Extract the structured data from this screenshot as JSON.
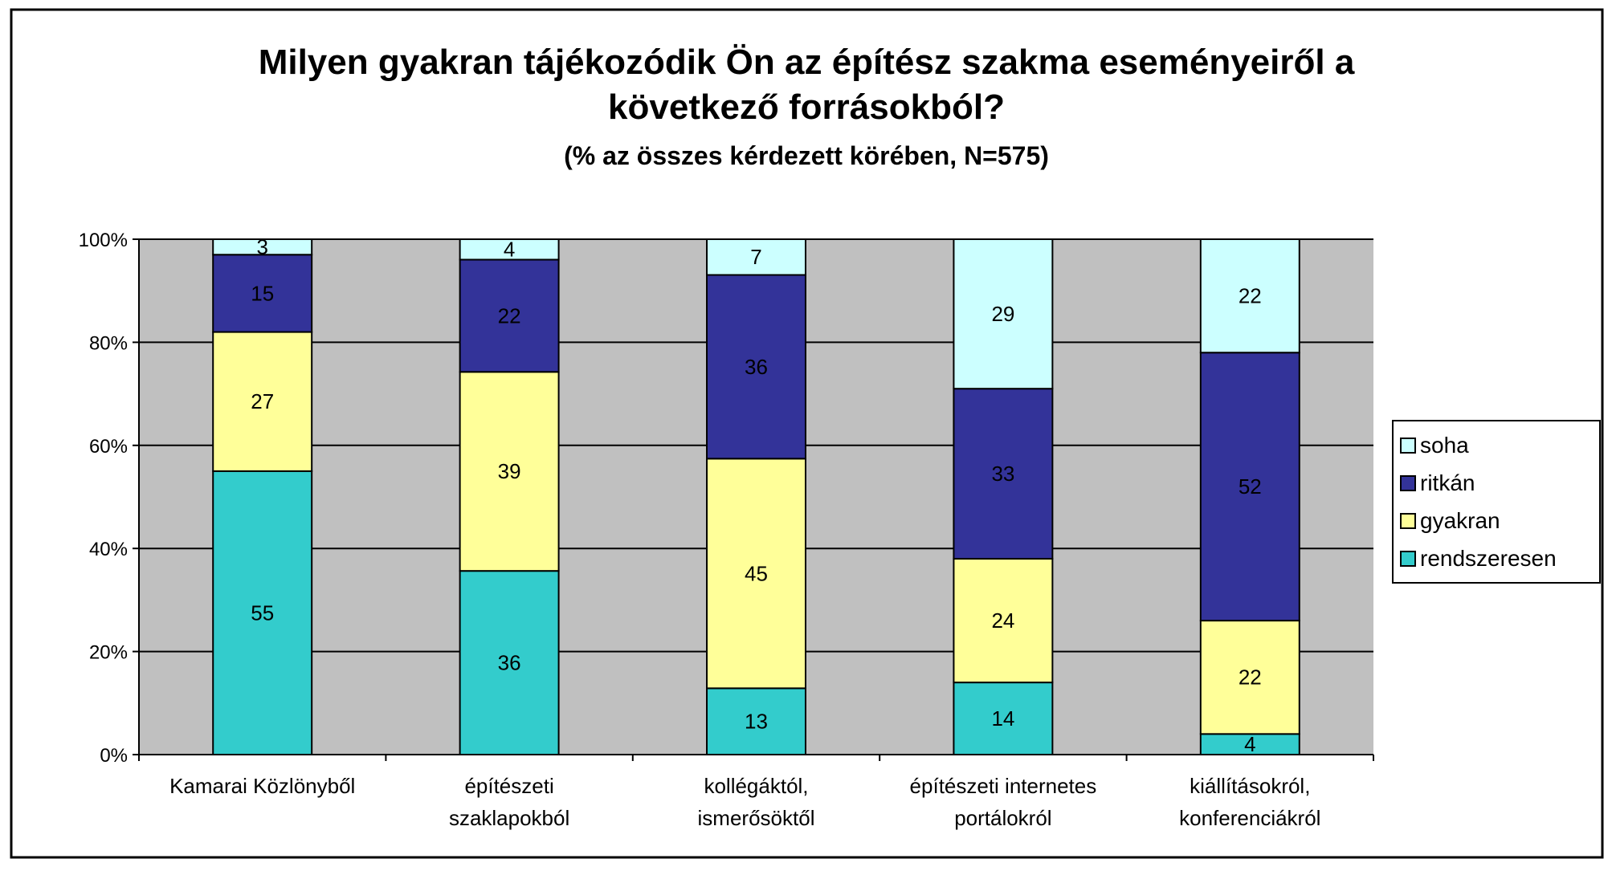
{
  "chart_data": {
    "type": "bar",
    "stacked": true,
    "percent_stacked": true,
    "title": "Milyen gyakran tájékozódik Ön az építész szakma eseményeiről a következő forrásokból?",
    "title_lines": [
      "Milyen gyakran tájékozódik Ön az építész szakma eseményeiről a",
      "következő forrásokból?"
    ],
    "subtitle": "(% az összes kérdezett körében, N=575)",
    "categories": [
      [
        "Kamarai Közlönyből"
      ],
      [
        "építészeti",
        "szaklapokból"
      ],
      [
        "kollégáktól,",
        "ismerősöktől"
      ],
      [
        "építészeti internetes",
        "portálokról"
      ],
      [
        "kiállításokról,",
        "konferenciákról"
      ]
    ],
    "series": [
      {
        "name": "rendszeresen",
        "color": "#33CCCC",
        "values": [
          55,
          36,
          13,
          14,
          4
        ]
      },
      {
        "name": "gyakran",
        "color": "#FFFF99",
        "values": [
          27,
          39,
          45,
          24,
          22
        ]
      },
      {
        "name": "ritkán",
        "color": "#333399",
        "values": [
          15,
          22,
          36,
          33,
          52
        ]
      },
      {
        "name": "soha",
        "color": "#CCFFFF",
        "values": [
          3,
          4,
          7,
          29,
          22
        ]
      }
    ],
    "legend_order": [
      "soha",
      "ritkán",
      "gyakran",
      "rendszeresen"
    ],
    "legend_position": "right",
    "y_ticks": [
      "0%",
      "20%",
      "40%",
      "60%",
      "80%",
      "100%"
    ],
    "ylim": [
      0,
      100
    ],
    "grid": true,
    "plot_background": "#C0C0C0"
  }
}
